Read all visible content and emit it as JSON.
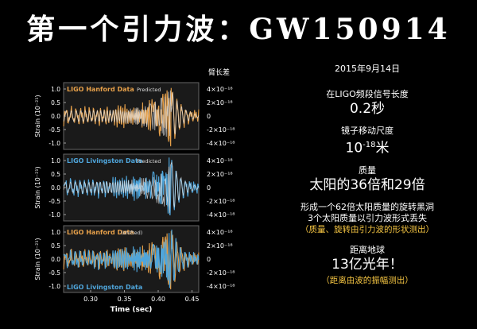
{
  "title": "第一个引力波：GW150914",
  "info": {
    "date": "2015年9月14日",
    "freq_label": "在LIGO频段信号长度",
    "freq_value": "0.2秒",
    "mirror_label": "镜子移动尺度",
    "mirror_value_base": "10",
    "mirror_value_exp": "-18",
    "mirror_value_unit": "米",
    "mass_label": "质量",
    "mass_value": "太阳的36倍和29倍",
    "bh_line1": "形成一个62倍太阳质量的旋转黑洞",
    "bh_line2": "3个太阳质量以引力波形式丢失",
    "bh_note": "（质量、旋转由引力波的形状测出）",
    "dist_label": "距离地球",
    "dist_value": "13亿光年！",
    "dist_note": "（距离由波的振幅测出）"
  },
  "chart_data": {
    "type": "line",
    "xlabel": "Time (sec)",
    "xlim": [
      0.26,
      0.46
    ],
    "x_ticks": [
      "0.30",
      "0.35",
      "0.40",
      "0.45"
    ],
    "right_axis_title": "臂长差",
    "colors": {
      "hanford": "#e6a04a",
      "livingston": "#4fa6dc",
      "predicted": "#e0e0e0"
    },
    "panels": [
      {
        "title": "LIGO Hanford Data",
        "tag": "Predicted",
        "ylabel": "Strain (10⁻²¹)",
        "y_ticks": [
          "1.0",
          "0.5",
          "0.0",
          "-0.5",
          "-1.0"
        ],
        "right_ticks": [
          "4×10⁻¹⁸",
          "2×10⁻¹⁸",
          "0",
          "-2×10⁻¹⁸",
          "-4×10⁻¹⁸"
        ],
        "series": [
          "hanford"
        ]
      },
      {
        "title": "LIGO Livingston Data",
        "tag": "Predicted",
        "ylabel": "Strain (10⁻²¹)",
        "y_ticks": [
          "1.0",
          "0.5",
          "0.0",
          "-0.5",
          "-1.0"
        ],
        "right_ticks": [
          "4×10⁻¹⁸",
          "2×10⁻¹⁸",
          "0",
          "-2×10⁻¹⁸",
          "-4×10⁻¹⁸"
        ],
        "series": [
          "livingston"
        ]
      },
      {
        "title": "LIGO Hanford Data",
        "tag": "(shifted)",
        "bottom_title": "LIGO Livingston Data",
        "ylabel": "Strain (10⁻²¹)",
        "y_ticks": [
          "1.0",
          "0.5",
          "0.0",
          "-0.5",
          "-1.0"
        ],
        "right_ticks": [
          "4×10⁻¹⁸",
          "2×10⁻¹⁸",
          "0",
          "-2×10⁻¹⁸",
          "-4×10⁻¹⁸"
        ],
        "series": [
          "hanford",
          "livingston"
        ]
      }
    ]
  }
}
